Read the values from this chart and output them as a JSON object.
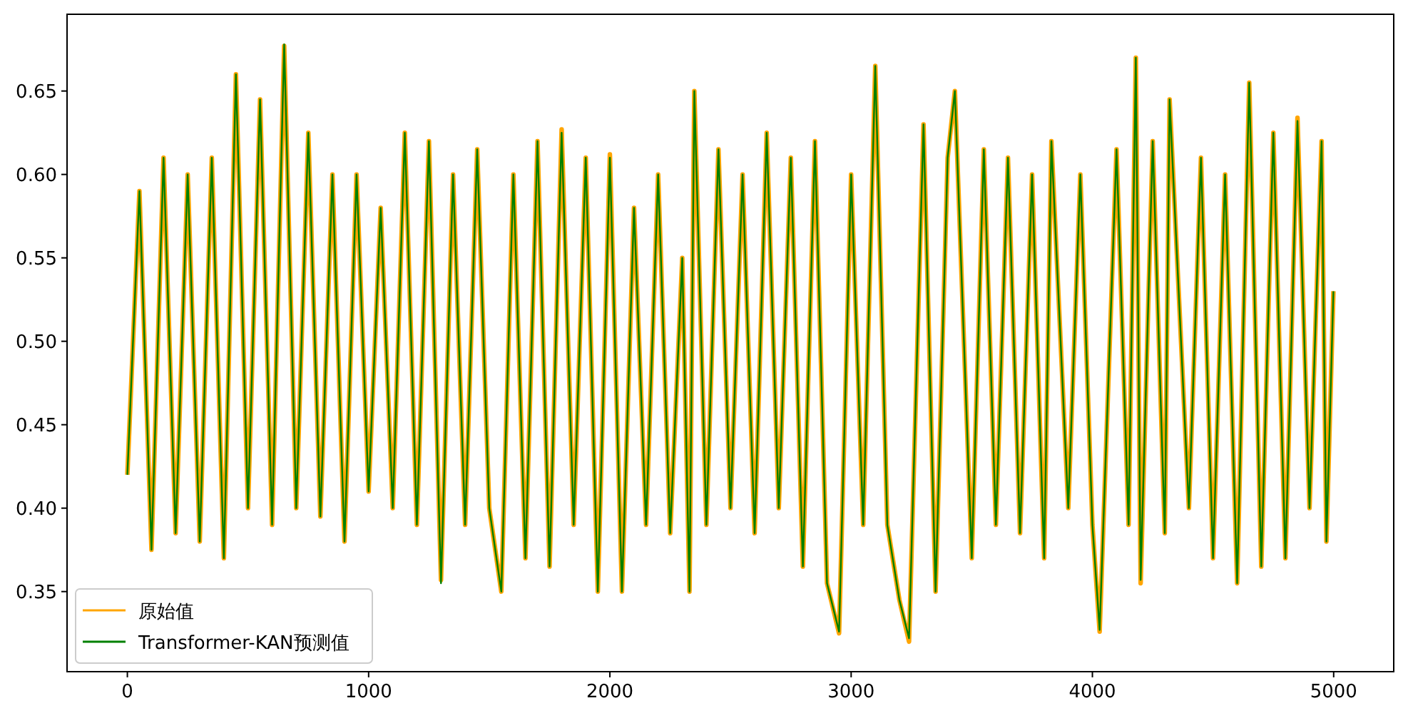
{
  "chart_data": {
    "type": "line",
    "xlim": [
      -250,
      5249
    ],
    "ylim": [
      0.302,
      0.696
    ],
    "xticks": [
      0,
      1000,
      2000,
      3000,
      4000,
      5000
    ],
    "yticks": [
      {
        "value": 0.35,
        "label": "0.35"
      },
      {
        "value": 0.4,
        "label": "0.40"
      },
      {
        "value": 0.45,
        "label": "0.45"
      },
      {
        "value": 0.5,
        "label": "0.50"
      },
      {
        "value": 0.55,
        "label": "0.55"
      },
      {
        "value": 0.6,
        "label": "0.60"
      },
      {
        "value": 0.65,
        "label": "0.65"
      }
    ],
    "legend": "bottom left",
    "grid": false,
    "marker": "none",
    "line_style": "solid",
    "x": [
      0,
      50,
      100,
      150,
      200,
      250,
      300,
      350,
      400,
      450,
      500,
      550,
      600,
      650,
      700,
      750,
      800,
      850,
      900,
      950,
      1000,
      1050,
      1100,
      1150,
      1200,
      1250,
      1300,
      1350,
      1400,
      1450,
      1500,
      1550,
      1600,
      1650,
      1700,
      1750,
      1800,
      1850,
      1900,
      1950,
      2000,
      2050,
      2100,
      2150,
      2200,
      2250,
      2300,
      2330,
      2350,
      2400,
      2450,
      2500,
      2550,
      2600,
      2650,
      2700,
      2750,
      2800,
      2850,
      2900,
      2950,
      3000,
      3050,
      3100,
      3150,
      3200,
      3240,
      3300,
      3350,
      3400,
      3430,
      3500,
      3550,
      3600,
      3650,
      3700,
      3750,
      3800,
      3830,
      3900,
      3950,
      4000,
      4030,
      4100,
      4150,
      4180,
      4200,
      4250,
      4300,
      4320,
      4400,
      4450,
      4500,
      4550,
      4600,
      4650,
      4700,
      4750,
      4800,
      4850,
      4900,
      4950,
      4970,
      4999
    ],
    "series": [
      {
        "name": "原始值",
        "color": "#ffa500",
        "values": [
          0.42,
          0.59,
          0.375,
          0.61,
          0.385,
          0.6,
          0.38,
          0.61,
          0.37,
          0.66,
          0.4,
          0.645,
          0.39,
          0.677,
          0.4,
          0.625,
          0.395,
          0.6,
          0.38,
          0.6,
          0.41,
          0.58,
          0.4,
          0.625,
          0.39,
          0.62,
          0.357,
          0.6,
          0.39,
          0.615,
          0.4,
          0.35,
          0.6,
          0.37,
          0.62,
          0.365,
          0.627,
          0.39,
          0.61,
          0.35,
          0.612,
          0.35,
          0.58,
          0.39,
          0.6,
          0.385,
          0.55,
          0.35,
          0.65,
          0.39,
          0.615,
          0.4,
          0.6,
          0.385,
          0.625,
          0.4,
          0.61,
          0.365,
          0.62,
          0.355,
          0.325,
          0.6,
          0.39,
          0.665,
          0.39,
          0.345,
          0.32,
          0.63,
          0.35,
          0.61,
          0.65,
          0.37,
          0.615,
          0.39,
          0.61,
          0.385,
          0.6,
          0.37,
          0.62,
          0.4,
          0.6,
          0.39,
          0.326,
          0.615,
          0.39,
          0.67,
          0.355,
          0.62,
          0.385,
          0.645,
          0.4,
          0.61,
          0.37,
          0.6,
          0.355,
          0.655,
          0.365,
          0.625,
          0.37,
          0.634,
          0.4,
          0.62,
          0.38,
          0.53
        ]
      },
      {
        "name": "Transformer-KAN预测值",
        "color": "#008000",
        "values": [
          0.42,
          0.59,
          0.375,
          0.61,
          0.385,
          0.6,
          0.38,
          0.61,
          0.37,
          0.66,
          0.4,
          0.645,
          0.39,
          0.678,
          0.4,
          0.625,
          0.395,
          0.6,
          0.38,
          0.6,
          0.41,
          0.58,
          0.4,
          0.625,
          0.39,
          0.62,
          0.355,
          0.6,
          0.39,
          0.615,
          0.4,
          0.35,
          0.6,
          0.37,
          0.62,
          0.365,
          0.625,
          0.39,
          0.61,
          0.35,
          0.61,
          0.35,
          0.58,
          0.39,
          0.6,
          0.385,
          0.55,
          0.35,
          0.65,
          0.39,
          0.615,
          0.4,
          0.6,
          0.385,
          0.625,
          0.4,
          0.61,
          0.365,
          0.62,
          0.355,
          0.326,
          0.6,
          0.39,
          0.665,
          0.39,
          0.345,
          0.322,
          0.63,
          0.35,
          0.61,
          0.65,
          0.37,
          0.615,
          0.39,
          0.61,
          0.385,
          0.6,
          0.37,
          0.62,
          0.4,
          0.6,
          0.39,
          0.327,
          0.615,
          0.39,
          0.67,
          0.357,
          0.62,
          0.385,
          0.645,
          0.4,
          0.61,
          0.37,
          0.6,
          0.355,
          0.655,
          0.365,
          0.625,
          0.37,
          0.632,
          0.4,
          0.62,
          0.38,
          0.53
        ]
      }
    ]
  }
}
